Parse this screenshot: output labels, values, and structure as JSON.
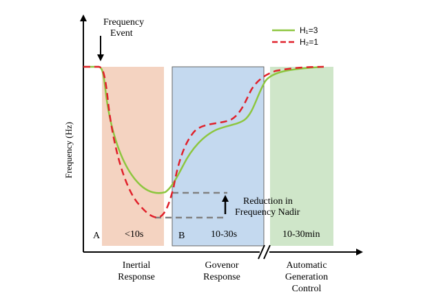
{
  "axis": {
    "ylabel": "Frequency (Hz)"
  },
  "event": {
    "line1": "Frequency",
    "line2": "Event"
  },
  "legend": {
    "h1_label": "H₁=3",
    "h2_label": "H₂=1"
  },
  "regions": [
    {
      "time_label": "<10s",
      "point_label": "A",
      "below_line1": "Inertial",
      "below_line2": "Response",
      "color": "#f4d3c1"
    },
    {
      "time_label": "10-30s",
      "point_label": "B",
      "below_line1": "Govenor",
      "below_line2": "Response",
      "color": "#c4d9ef"
    },
    {
      "time_label": "10-30min",
      "below_line1": "Automatic",
      "below_line2": "Generation",
      "below_line3": "Control",
      "color": "#cfe6c9"
    }
  ],
  "annotation": {
    "line1": "Reduction in",
    "line2": "Frequency Nadir"
  },
  "colors": {
    "h1_line": "#8dc63f",
    "h2_line": "#e0202a",
    "axis": "#000000",
    "nadir_marker": "#808080"
  }
}
